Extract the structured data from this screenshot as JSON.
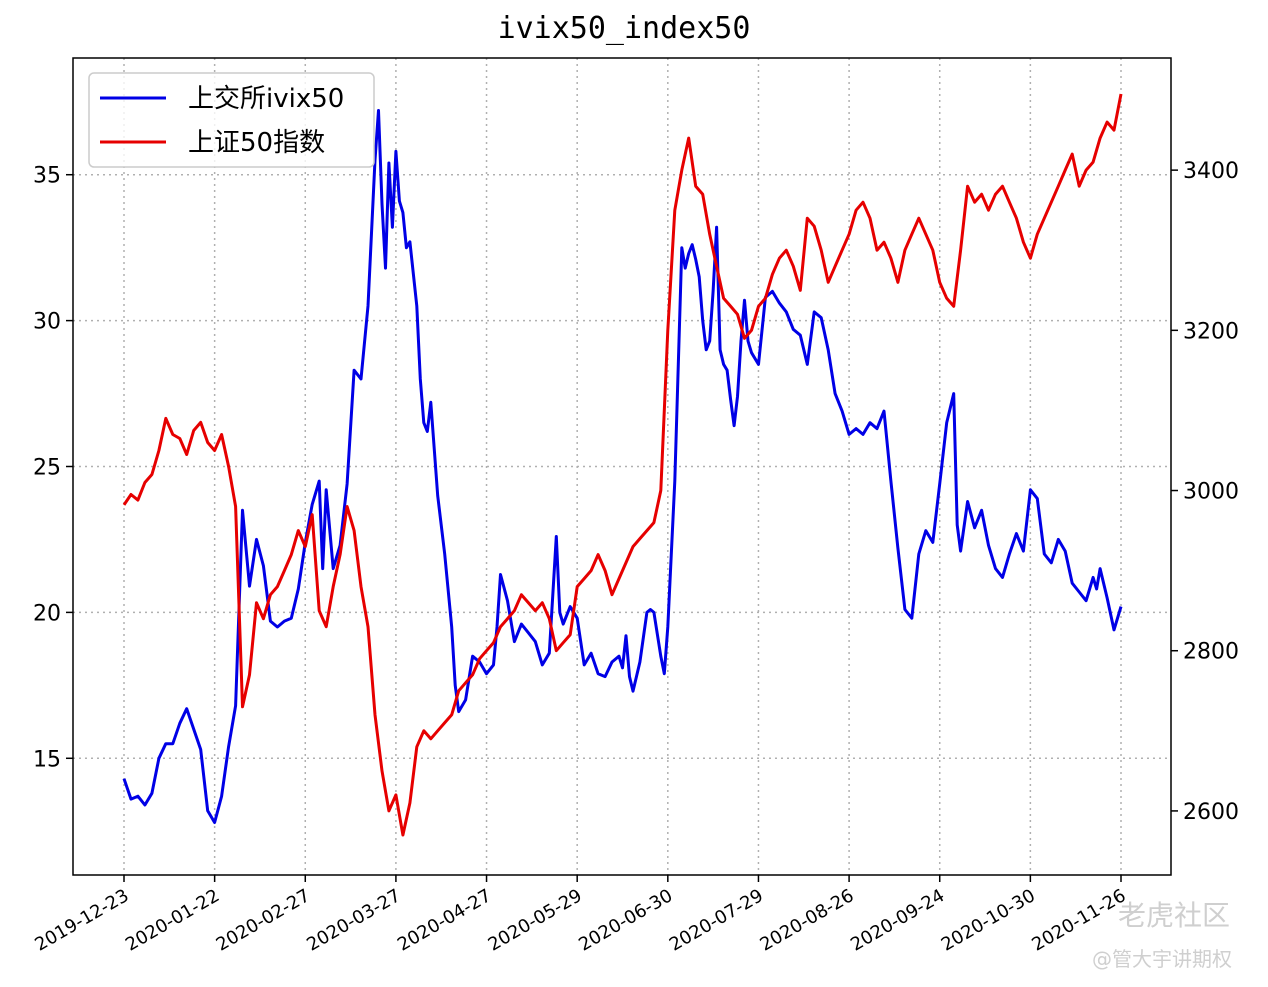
{
  "chart_data": {
    "type": "line",
    "title": "ivix50_index50",
    "xlabel": "",
    "ylabel": "",
    "grid": true,
    "legend_placement": "top-left",
    "x_tick_labels": [
      "2019-12-23",
      "2020-01-22",
      "2020-02-27",
      "2020-03-27",
      "2020-04-27",
      "2020-05-29",
      "2020-06-30",
      "2020-07-29",
      "2020-08-26",
      "2020-09-24",
      "2020-10-30",
      "2020-11-26"
    ],
    "y_left": {
      "range": [
        11,
        39
      ],
      "ticks": [
        15,
        20,
        25,
        30,
        35
      ]
    },
    "y_right": {
      "range": [
        2520,
        3540
      ],
      "ticks": [
        2600,
        2800,
        3000,
        3200,
        3400
      ]
    },
    "series": [
      {
        "name": "上交所ivix50",
        "color": "#0000e6",
        "axis": "left",
        "values": [
          [
            0,
            14.3
          ],
          [
            2,
            13.6
          ],
          [
            4,
            13.7
          ],
          [
            6,
            13.4
          ],
          [
            8,
            13.8
          ],
          [
            10,
            15.0
          ],
          [
            12,
            15.5
          ],
          [
            14,
            15.5
          ],
          [
            16,
            16.2
          ],
          [
            18,
            16.7
          ],
          [
            20,
            16.0
          ],
          [
            22,
            15.3
          ],
          [
            24,
            13.2
          ],
          [
            26,
            12.8
          ],
          [
            28,
            13.7
          ],
          [
            30,
            15.4
          ],
          [
            32,
            16.8
          ],
          [
            34,
            23.5
          ],
          [
            36,
            20.9
          ],
          [
            38,
            22.5
          ],
          [
            40,
            21.6
          ],
          [
            42,
            19.7
          ],
          [
            44,
            19.5
          ],
          [
            46,
            19.7
          ],
          [
            48,
            19.8
          ],
          [
            50,
            20.8
          ],
          [
            52,
            22.4
          ],
          [
            54,
            23.7
          ],
          [
            56,
            24.5
          ],
          [
            57,
            21.5
          ],
          [
            58,
            24.2
          ],
          [
            60,
            21.5
          ],
          [
            62,
            22.3
          ],
          [
            64,
            24.4
          ],
          [
            66,
            28.3
          ],
          [
            68,
            28.0
          ],
          [
            70,
            30.5
          ],
          [
            72,
            35.5
          ],
          [
            73,
            37.2
          ],
          [
            74,
            34.0
          ],
          [
            75,
            31.8
          ],
          [
            76,
            35.4
          ],
          [
            77,
            33.2
          ],
          [
            78,
            35.8
          ],
          [
            79,
            34.1
          ],
          [
            80,
            33.7
          ],
          [
            81,
            32.5
          ],
          [
            82,
            32.7
          ],
          [
            84,
            30.5
          ],
          [
            85,
            28.0
          ],
          [
            86,
            26.5
          ],
          [
            87,
            26.2
          ],
          [
            88,
            27.2
          ],
          [
            90,
            24.0
          ],
          [
            92,
            22.0
          ],
          [
            94,
            19.5
          ],
          [
            95,
            17.5
          ],
          [
            96,
            16.6
          ],
          [
            98,
            17.0
          ],
          [
            100,
            18.5
          ],
          [
            102,
            18.3
          ],
          [
            104,
            17.9
          ],
          [
            106,
            18.2
          ],
          [
            107,
            19.5
          ],
          [
            108,
            21.3
          ],
          [
            110,
            20.4
          ],
          [
            112,
            19.0
          ],
          [
            114,
            19.6
          ],
          [
            116,
            19.3
          ],
          [
            118,
            19.0
          ],
          [
            120,
            18.2
          ],
          [
            122,
            18.6
          ],
          [
            124,
            22.6
          ],
          [
            125,
            20.0
          ],
          [
            126,
            19.6
          ],
          [
            128,
            20.2
          ],
          [
            130,
            19.8
          ],
          [
            132,
            18.2
          ],
          [
            134,
            18.6
          ],
          [
            136,
            17.9
          ],
          [
            138,
            17.8
          ],
          [
            140,
            18.3
          ],
          [
            142,
            18.5
          ],
          [
            143,
            18.1
          ],
          [
            144,
            19.2
          ],
          [
            145,
            17.8
          ],
          [
            146,
            17.3
          ],
          [
            148,
            18.3
          ],
          [
            150,
            20.0
          ],
          [
            151,
            20.1
          ],
          [
            152,
            20.0
          ],
          [
            154,
            18.5
          ],
          [
            155,
            17.9
          ],
          [
            156,
            19.5
          ],
          [
            158,
            24.5
          ],
          [
            159,
            28.5
          ],
          [
            160,
            32.5
          ],
          [
            161,
            31.8
          ],
          [
            162,
            32.3
          ],
          [
            163,
            32.6
          ],
          [
            164,
            32.1
          ],
          [
            165,
            31.5
          ],
          [
            166,
            30.0
          ],
          [
            167,
            29.0
          ],
          [
            168,
            29.3
          ],
          [
            169,
            31.0
          ],
          [
            170,
            33.2
          ],
          [
            171,
            29.0
          ],
          [
            172,
            28.5
          ],
          [
            173,
            28.3
          ],
          [
            174,
            27.3
          ],
          [
            175,
            26.4
          ],
          [
            176,
            27.4
          ],
          [
            177,
            29.3
          ],
          [
            178,
            30.7
          ],
          [
            179,
            29.3
          ],
          [
            180,
            28.9
          ],
          [
            182,
            28.5
          ],
          [
            184,
            30.8
          ],
          [
            186,
            31.0
          ],
          [
            188,
            30.6
          ],
          [
            190,
            30.3
          ],
          [
            192,
            29.7
          ],
          [
            194,
            29.5
          ],
          [
            196,
            28.5
          ],
          [
            198,
            30.3
          ],
          [
            200,
            30.1
          ],
          [
            202,
            29.0
          ],
          [
            204,
            27.5
          ],
          [
            206,
            26.9
          ],
          [
            208,
            26.1
          ],
          [
            210,
            26.3
          ],
          [
            212,
            26.1
          ],
          [
            214,
            26.5
          ],
          [
            216,
            26.3
          ],
          [
            218,
            26.9
          ],
          [
            220,
            24.5
          ],
          [
            222,
            22.2
          ],
          [
            224,
            20.1
          ],
          [
            226,
            19.8
          ],
          [
            228,
            22.0
          ],
          [
            230,
            22.8
          ],
          [
            232,
            22.4
          ],
          [
            234,
            24.4
          ],
          [
            236,
            26.5
          ],
          [
            238,
            27.5
          ],
          [
            239,
            23.0
          ],
          [
            240,
            22.1
          ],
          [
            242,
            23.8
          ],
          [
            244,
            22.9
          ],
          [
            246,
            23.5
          ],
          [
            248,
            22.3
          ],
          [
            250,
            21.5
          ],
          [
            252,
            21.2
          ],
          [
            254,
            22.0
          ],
          [
            256,
            22.7
          ],
          [
            258,
            22.1
          ],
          [
            260,
            24.2
          ],
          [
            262,
            23.9
          ],
          [
            264,
            22.0
          ],
          [
            266,
            21.7
          ],
          [
            268,
            22.5
          ],
          [
            270,
            22.1
          ],
          [
            272,
            21.0
          ],
          [
            274,
            20.7
          ],
          [
            276,
            20.4
          ],
          [
            278,
            21.2
          ],
          [
            279,
            20.8
          ],
          [
            280,
            21.5
          ],
          [
            282,
            20.5
          ],
          [
            284,
            19.4
          ],
          [
            286,
            20.2
          ]
        ]
      },
      {
        "name": "上证50指数",
        "color": "#e60000",
        "axis": "right",
        "values": [
          [
            0,
            2982
          ],
          [
            2,
            2995
          ],
          [
            4,
            2988
          ],
          [
            6,
            3010
          ],
          [
            8,
            3020
          ],
          [
            10,
            3050
          ],
          [
            12,
            3090
          ],
          [
            14,
            3070
          ],
          [
            16,
            3065
          ],
          [
            18,
            3045
          ],
          [
            20,
            3075
          ],
          [
            22,
            3085
          ],
          [
            24,
            3060
          ],
          [
            26,
            3050
          ],
          [
            28,
            3070
          ],
          [
            30,
            3030
          ],
          [
            32,
            2980
          ],
          [
            34,
            2730
          ],
          [
            36,
            2770
          ],
          [
            38,
            2860
          ],
          [
            40,
            2840
          ],
          [
            42,
            2870
          ],
          [
            44,
            2880
          ],
          [
            46,
            2900
          ],
          [
            48,
            2920
          ],
          [
            50,
            2950
          ],
          [
            52,
            2930
          ],
          [
            54,
            2970
          ],
          [
            56,
            2850
          ],
          [
            58,
            2830
          ],
          [
            60,
            2880
          ],
          [
            62,
            2920
          ],
          [
            64,
            2980
          ],
          [
            66,
            2950
          ],
          [
            68,
            2880
          ],
          [
            70,
            2830
          ],
          [
            72,
            2720
          ],
          [
            74,
            2650
          ],
          [
            76,
            2600
          ],
          [
            78,
            2620
          ],
          [
            80,
            2570
          ],
          [
            82,
            2610
          ],
          [
            84,
            2680
          ],
          [
            86,
            2700
          ],
          [
            88,
            2690
          ],
          [
            90,
            2700
          ],
          [
            92,
            2710
          ],
          [
            94,
            2720
          ],
          [
            96,
            2750
          ],
          [
            98,
            2760
          ],
          [
            100,
            2770
          ],
          [
            102,
            2790
          ],
          [
            104,
            2800
          ],
          [
            106,
            2810
          ],
          [
            108,
            2830
          ],
          [
            110,
            2840
          ],
          [
            112,
            2850
          ],
          [
            114,
            2870
          ],
          [
            116,
            2860
          ],
          [
            118,
            2850
          ],
          [
            120,
            2860
          ],
          [
            122,
            2840
          ],
          [
            124,
            2800
          ],
          [
            126,
            2810
          ],
          [
            128,
            2820
          ],
          [
            130,
            2880
          ],
          [
            132,
            2890
          ],
          [
            134,
            2900
          ],
          [
            136,
            2920
          ],
          [
            138,
            2900
          ],
          [
            140,
            2870
          ],
          [
            142,
            2890
          ],
          [
            144,
            2910
          ],
          [
            146,
            2930
          ],
          [
            148,
            2940
          ],
          [
            150,
            2950
          ],
          [
            152,
            2960
          ],
          [
            154,
            3000
          ],
          [
            156,
            3200
          ],
          [
            158,
            3350
          ],
          [
            160,
            3400
          ],
          [
            162,
            3440
          ],
          [
            164,
            3380
          ],
          [
            166,
            3370
          ],
          [
            168,
            3320
          ],
          [
            170,
            3280
          ],
          [
            172,
            3240
          ],
          [
            174,
            3230
          ],
          [
            176,
            3220
          ],
          [
            178,
            3190
          ],
          [
            180,
            3200
          ],
          [
            182,
            3230
          ],
          [
            184,
            3240
          ],
          [
            186,
            3270
          ],
          [
            188,
            3290
          ],
          [
            190,
            3300
          ],
          [
            192,
            3280
          ],
          [
            194,
            3250
          ],
          [
            196,
            3340
          ],
          [
            198,
            3330
          ],
          [
            200,
            3300
          ],
          [
            202,
            3260
          ],
          [
            204,
            3280
          ],
          [
            206,
            3300
          ],
          [
            208,
            3320
          ],
          [
            210,
            3350
          ],
          [
            212,
            3360
          ],
          [
            214,
            3340
          ],
          [
            216,
            3300
          ],
          [
            218,
            3310
          ],
          [
            220,
            3290
          ],
          [
            222,
            3260
          ],
          [
            224,
            3300
          ],
          [
            226,
            3320
          ],
          [
            228,
            3340
          ],
          [
            230,
            3320
          ],
          [
            232,
            3300
          ],
          [
            234,
            3260
          ],
          [
            236,
            3240
          ],
          [
            238,
            3230
          ],
          [
            240,
            3300
          ],
          [
            242,
            3380
          ],
          [
            244,
            3360
          ],
          [
            246,
            3370
          ],
          [
            248,
            3350
          ],
          [
            250,
            3370
          ],
          [
            252,
            3380
          ],
          [
            254,
            3360
          ],
          [
            256,
            3340
          ],
          [
            258,
            3310
          ],
          [
            260,
            3290
          ],
          [
            262,
            3320
          ],
          [
            264,
            3340
          ],
          [
            266,
            3360
          ],
          [
            268,
            3380
          ],
          [
            270,
            3400
          ],
          [
            272,
            3420
          ],
          [
            274,
            3380
          ],
          [
            276,
            3400
          ],
          [
            278,
            3410
          ],
          [
            280,
            3440
          ],
          [
            282,
            3460
          ],
          [
            284,
            3450
          ],
          [
            286,
            3495
          ]
        ]
      }
    ]
  },
  "watermark": {
    "brand": "老虎社区",
    "author": "@管大宇讲期权"
  }
}
